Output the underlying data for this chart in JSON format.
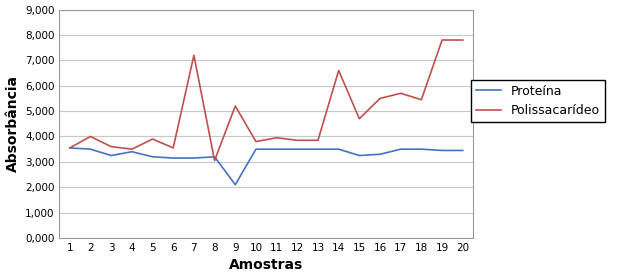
{
  "x": [
    1,
    2,
    3,
    4,
    5,
    6,
    7,
    8,
    9,
    10,
    11,
    12,
    13,
    14,
    15,
    16,
    17,
    18,
    19,
    20
  ],
  "proteina": [
    3550,
    3500,
    3250,
    3400,
    3200,
    3150,
    3150,
    3200,
    2100,
    3500,
    3500,
    3500,
    3500,
    3500,
    3250,
    3300,
    3500,
    3500,
    3450,
    3450
  ],
  "polissacarideo": [
    3550,
    4000,
    3600,
    3500,
    3900,
    3550,
    7200,
    3050,
    5200,
    3800,
    3950,
    3850,
    3850,
    6600,
    4700,
    5500,
    5700,
    5450,
    7800,
    7800
  ],
  "proteina_color": "#4472C4",
  "polissacarideo_color": "#C0504D",
  "xlabel": "Amostras",
  "ylabel": "Absorbância",
  "legend_proteina": "Proteína",
  "legend_polissacarideo": "Polissacarídeo",
  "ylim": [
    0,
    9000
  ],
  "yticks": [
    0,
    1000,
    2000,
    3000,
    4000,
    5000,
    6000,
    7000,
    8000,
    9000
  ],
  "ytick_labels": [
    "0,000",
    "1,000",
    "2,000",
    "3,000",
    "4,000",
    "5,000",
    "6,000",
    "7,000",
    "8,000",
    "9,000"
  ],
  "background_color": "#ffffff",
  "grid_color": "#c8c8c8",
  "spine_color": "#999999"
}
